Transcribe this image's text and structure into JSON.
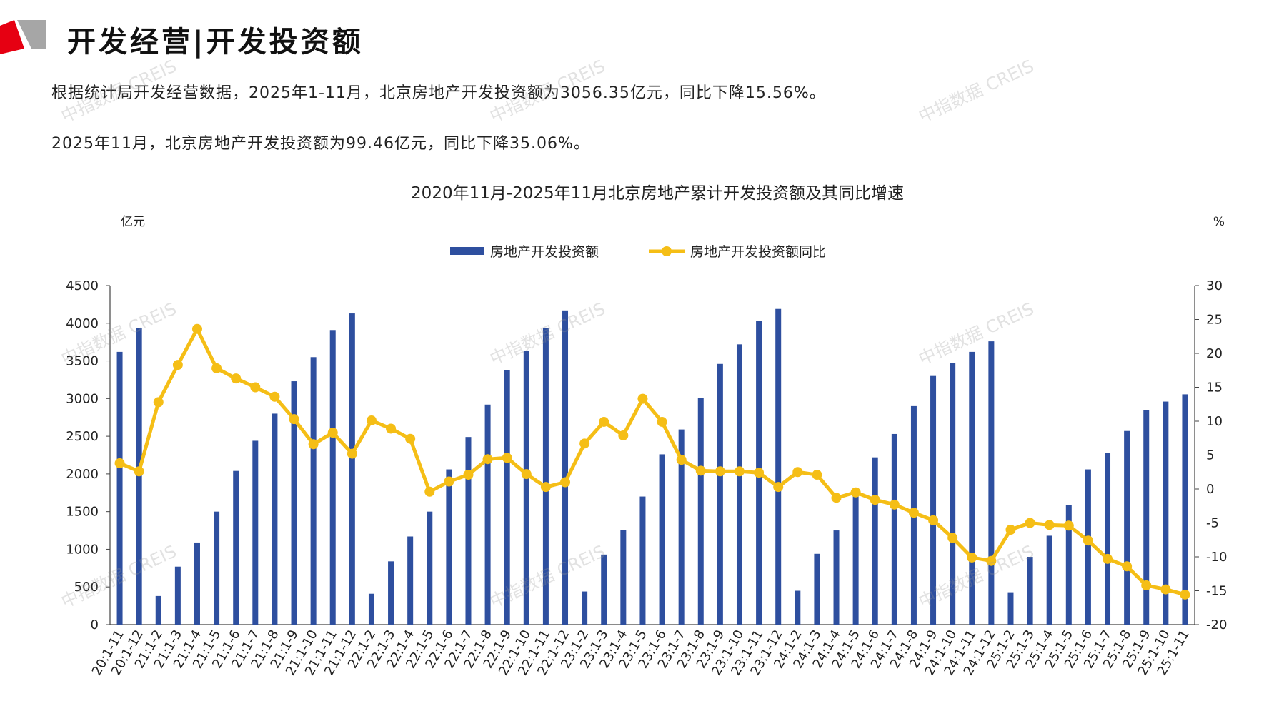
{
  "header": {
    "title": "开发经营|开发投资额"
  },
  "paragraphs": [
    "根据统计局开发经营数据，2025年1-11月，北京房地产开发投资额为3056.35亿元，同比下降15.56%。",
    "2025年11月，北京房地产开发投资额为99.46亿元，同比下降35.06%。"
  ],
  "watermark": "中指数据 CREIS",
  "colors": {
    "bar": "#2E4F9F",
    "line": "#F5BE16",
    "brand_red": "#E60012",
    "brand_gray": "#A6A6A6"
  },
  "chart_data": {
    "type": "bar+line",
    "title": "2020年11月-2025年11月北京房地产累计开发投资额及其同比增速",
    "y_left_unit": "亿元",
    "y_right_unit": "%",
    "y_left_range": [
      0,
      4500
    ],
    "y_left_ticks": [
      "0",
      "500",
      "1000",
      "1500",
      "2000",
      "2500",
      "3000",
      "3500",
      "4000",
      "4500"
    ],
    "y_right_range": [
      -20,
      30
    ],
    "y_right_ticks": [
      "-20",
      "-15",
      "-10",
      "-5",
      "0",
      "5",
      "10",
      "15",
      "20",
      "25",
      "30"
    ],
    "legend_position": "top-center",
    "categories": [
      "20:1-11",
      "20:1-12",
      "21:1-2",
      "21:1-3",
      "21:1-4",
      "21:1-5",
      "21:1-6",
      "21:1-7",
      "21:1-8",
      "21:1-9",
      "21:1-10",
      "21:1-11",
      "21:1-12",
      "22:1-2",
      "22:1-3",
      "22:1-4",
      "22:1-5",
      "22:1-6",
      "22:1-7",
      "22:1-8",
      "22:1-9",
      "22:1-10",
      "22:1-11",
      "22:1-12",
      "23:1-2",
      "23:1-3",
      "23:1-4",
      "23:1-5",
      "23:1-6",
      "23:1-7",
      "23:1-8",
      "23:1-9",
      "23:1-10",
      "23:1-11",
      "23:1-12",
      "24:1-2",
      "24:1-3",
      "24:1-4",
      "24:1-5",
      "24:1-6",
      "24:1-7",
      "24:1-8",
      "24:1-9",
      "24:1-10",
      "24:1-11",
      "24:1-12",
      "25:1-2",
      "25:1-3",
      "25:1-4",
      "25:1-5",
      "25:1-6",
      "25:1-7",
      "25:1-8",
      "25:1-9",
      "25:1-10",
      "25:1-11"
    ],
    "series": [
      {
        "name": "房地产开发投资额",
        "kind": "bar",
        "axis": "left",
        "values": [
          3620,
          3940,
          380,
          770,
          1090,
          1500,
          2040,
          2440,
          2800,
          3230,
          3550,
          3910,
          4130,
          410,
          840,
          1170,
          1500,
          2060,
          2490,
          2920,
          3380,
          3630,
          3940,
          4170,
          440,
          930,
          1260,
          1700,
          2260,
          2590,
          3010,
          3460,
          3720,
          4030,
          4190,
          450,
          940,
          1250,
          1700,
          2220,
          2530,
          2900,
          3300,
          3470,
          3620,
          3760,
          430,
          900,
          1180,
          1590,
          2060,
          2280,
          2570,
          2850,
          2960,
          3056
        ]
      },
      {
        "name": "房地产开发投资额同比",
        "kind": "line",
        "axis": "right",
        "values": [
          3.8,
          2.6,
          12.8,
          18.3,
          23.6,
          17.8,
          16.3,
          15.0,
          13.6,
          10.3,
          6.6,
          8.3,
          5.2,
          10.1,
          8.9,
          7.4,
          -0.4,
          1.1,
          2.1,
          4.4,
          4.6,
          2.2,
          0.3,
          1.0,
          6.7,
          9.9,
          7.9,
          13.3,
          9.9,
          4.3,
          2.7,
          2.6,
          2.6,
          2.4,
          0.3,
          2.5,
          2.1,
          -1.3,
          -0.5,
          -1.6,
          -2.3,
          -3.5,
          -4.6,
          -7.2,
          -10.1,
          -10.6,
          -6.0,
          -5.0,
          -5.3,
          -5.4,
          -7.6,
          -10.3,
          -11.4,
          -14.2,
          -14.8,
          -15.56
        ]
      }
    ]
  }
}
